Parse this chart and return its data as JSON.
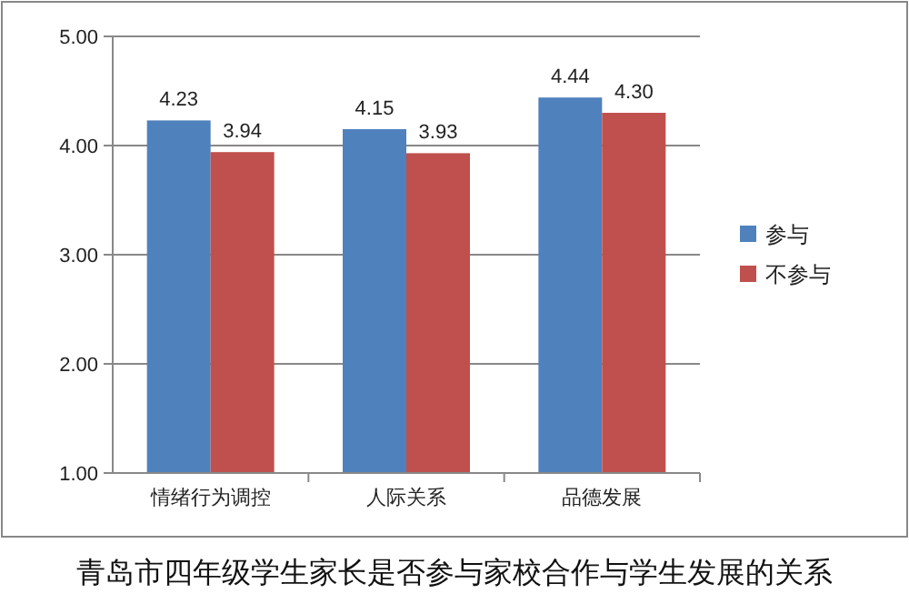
{
  "chart_data": {
    "type": "bar",
    "title": "青岛市四年级学生家长是否参与家校合作与学生发展的关系",
    "categories": [
      "情绪行为调控",
      "人际关系",
      "品德发展"
    ],
    "series": [
      {
        "name": "参与",
        "color": "#4f81bd",
        "values": [
          4.23,
          4.15,
          4.44
        ],
        "value_labels": [
          "4.23",
          "4.15",
          "4.44"
        ]
      },
      {
        "name": "不参与",
        "color": "#c0504d",
        "values": [
          3.94,
          3.93,
          4.3
        ],
        "value_labels": [
          "3.94",
          "3.93",
          "4.30"
        ]
      }
    ],
    "ylim": [
      1,
      5
    ],
    "yticks": [
      {
        "value": 1,
        "label": "1.00"
      },
      {
        "value": 2,
        "label": "2.00"
      },
      {
        "value": 3,
        "label": "3.00"
      },
      {
        "value": 4,
        "label": "4.00"
      },
      {
        "value": 5,
        "label": "5.00"
      }
    ],
    "grid": "y",
    "legend": "right"
  }
}
